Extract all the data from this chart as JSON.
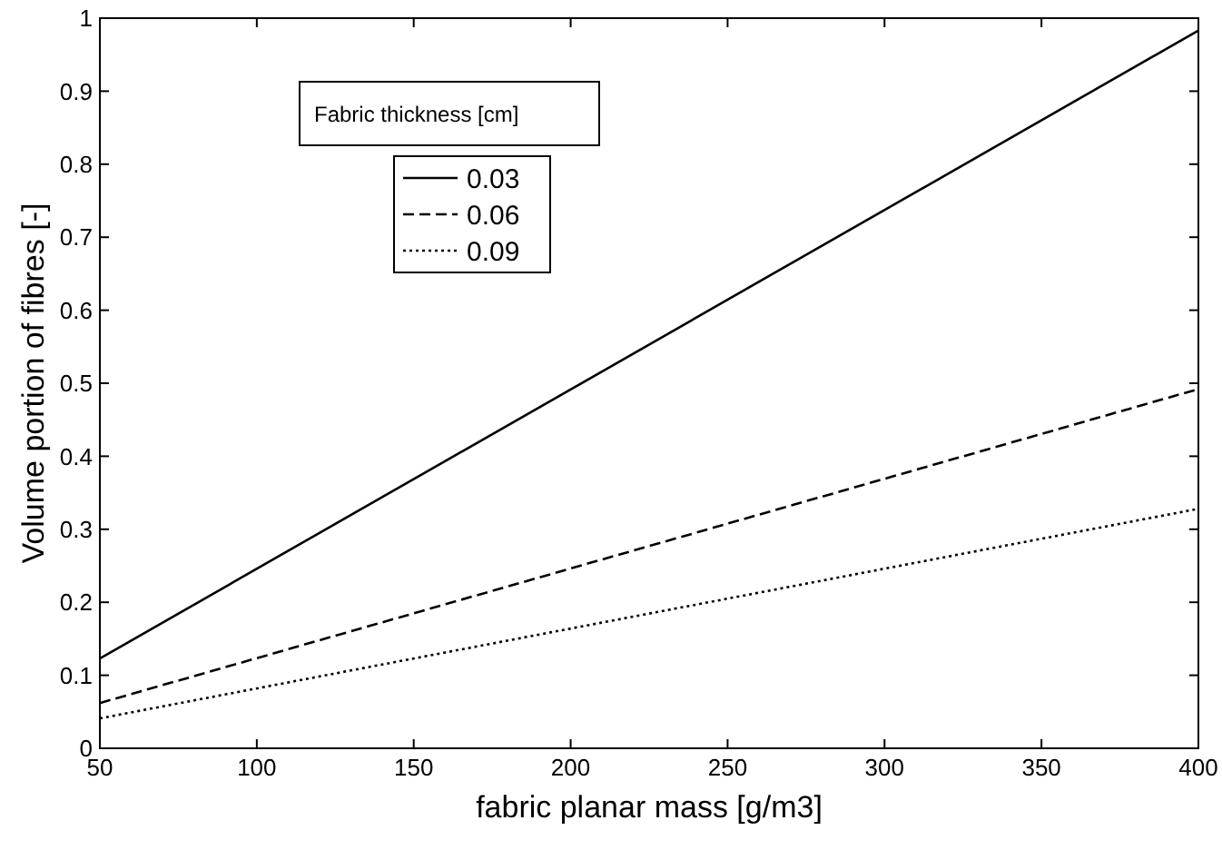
{
  "chart_data": {
    "type": "line",
    "xlabel": "fabric planar mass [g/m3]",
    "ylabel": "Volume portion of fibres [-]",
    "legend_title": "Fabric thickness [cm]",
    "legend": "top left",
    "grid": false,
    "xlim": [
      50,
      400
    ],
    "xticks": [
      50,
      100,
      150,
      200,
      250,
      300,
      350,
      400
    ],
    "ylim": [
      0,
      1
    ],
    "yticks": [
      0,
      0.1,
      0.2,
      0.3,
      0.4,
      0.5,
      0.6,
      0.7,
      0.8,
      0.9,
      1
    ],
    "x": [
      50,
      400
    ],
    "series": [
      {
        "name": "0.03",
        "color": "#000000",
        "line_style": "solid",
        "values": [
          0.123,
          0.983
        ]
      },
      {
        "name": "0.06",
        "color": "#000000",
        "line_style": "dashed",
        "values": [
          0.062,
          0.492
        ]
      },
      {
        "name": "0.09",
        "color": "#000000",
        "line_style": "dotted",
        "values": [
          0.041,
          0.328
        ]
      }
    ]
  }
}
